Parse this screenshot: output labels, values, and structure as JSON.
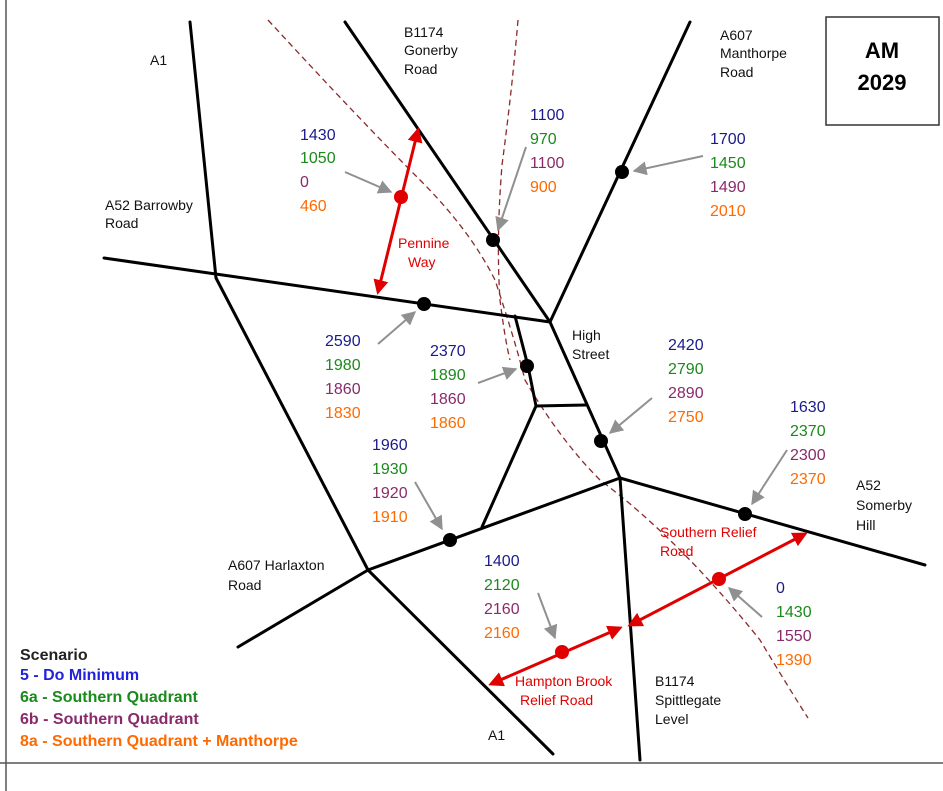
{
  "year_box": {
    "line1": "AM",
    "line2": "2029"
  },
  "colors": {
    "s5": "#1a1a8c",
    "s6a": "#1a8a1a",
    "s6b": "#8a2a6a",
    "s8a": "#ff6a00",
    "relief": "#e00000",
    "route": "#8b2a2a",
    "arrow": "#909090",
    "road": "#000000"
  },
  "road_labels": {
    "a1_north": "A1",
    "b1174_north_1": "B1174",
    "b1174_north_2": "Gonerby",
    "b1174_north_3": "Road",
    "a607_north_1": "A607",
    "a607_north_2": "Manthorpe",
    "a607_north_3": "Road",
    "a52_west_1": "A52 Barrowby",
    "a52_west_2": "Road",
    "high_street_1": "High",
    "high_street_2": "Street",
    "a52_east_1": "A52",
    "a52_east_2": "Somerby",
    "a52_east_3": "Hill",
    "a607_south_1": "A607 Harlaxton",
    "a607_south_2": "Road",
    "a1_south": "A1",
    "b1174_south_1": "B1174",
    "b1174_south_2": "Spittlegate",
    "b1174_south_3": "Level"
  },
  "relief_labels": {
    "pennine_1": "Pennine",
    "pennine_2": "Way",
    "southern_1": "Southern Relief",
    "southern_2": "Road",
    "hampton_1": "Hampton Brook",
    "hampton_2": "Relief Road"
  },
  "flows": {
    "pennine_way": {
      "s5": "1430",
      "s6a": "1050",
      "s6b": "0",
      "s8a": "460"
    },
    "gonerby_road": {
      "s5": "1100",
      "s6a": "970",
      "s6b": "1100",
      "s8a": "900"
    },
    "manthorpe_road": {
      "s5": "1700",
      "s6a": "1450",
      "s6b": "1490",
      "s8a": "2010"
    },
    "barrowby_road": {
      "s5": "2590",
      "s6a": "1980",
      "s6b": "1860",
      "s8a": "1830"
    },
    "link_central": {
      "s5": "2370",
      "s6a": "1890",
      "s6b": "1860",
      "s8a": "1860"
    },
    "high_street_s": {
      "s5": "2420",
      "s6a": "2790",
      "s6b": "2890",
      "s8a": "2750"
    },
    "somerby_hill": {
      "s5": "1630",
      "s6a": "2370",
      "s6b": "2300",
      "s8a": "2370"
    },
    "harlaxton_link": {
      "s5": "1960",
      "s6a": "1930",
      "s6b": "1920",
      "s8a": "1910"
    },
    "hampton_brook": {
      "s5": "1400",
      "s6a": "2120",
      "s6b": "2160",
      "s8a": "2160"
    },
    "southern_relief": {
      "s5": "0",
      "s6a": "1430",
      "s6b": "1550",
      "s8a": "1390"
    }
  },
  "legend": {
    "title": "Scenario",
    "items": [
      "5 - Do Minimum",
      "6a - Southern Quadrant",
      "6b - Southern Quadrant",
      "8a - Southern Quadrant + Manthorpe"
    ]
  }
}
